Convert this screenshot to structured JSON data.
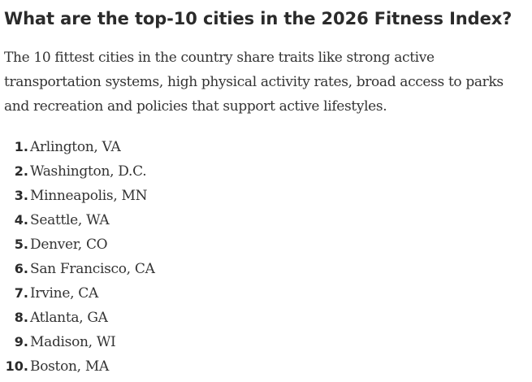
{
  "article": {
    "heading": "What are the top-10 cities in the 2026 Fitness Index?",
    "intro": "The 10 fittest cities in the country share traits like strong active transportation systems, high physical activity rates, broad access to parks and recreation and policies that support active lifestyles.",
    "rankings": [
      {
        "rank": "1.",
        "city": "Arlington, VA"
      },
      {
        "rank": "2.",
        "city": "Washington, D.C."
      },
      {
        "rank": "3.",
        "city": "Minneapolis, MN"
      },
      {
        "rank": "4.",
        "city": "Seattle, WA"
      },
      {
        "rank": "5.",
        "city": "Denver, CO"
      },
      {
        "rank": "6.",
        "city": "San Francisco, CA"
      },
      {
        "rank": "7.",
        "city": "Irvine, CA"
      },
      {
        "rank": "8.",
        "city": "Atlanta, GA"
      },
      {
        "rank": "9.",
        "city": "Madison, WI"
      },
      {
        "rank": "10.",
        "city": "Boston, MA"
      }
    ]
  }
}
